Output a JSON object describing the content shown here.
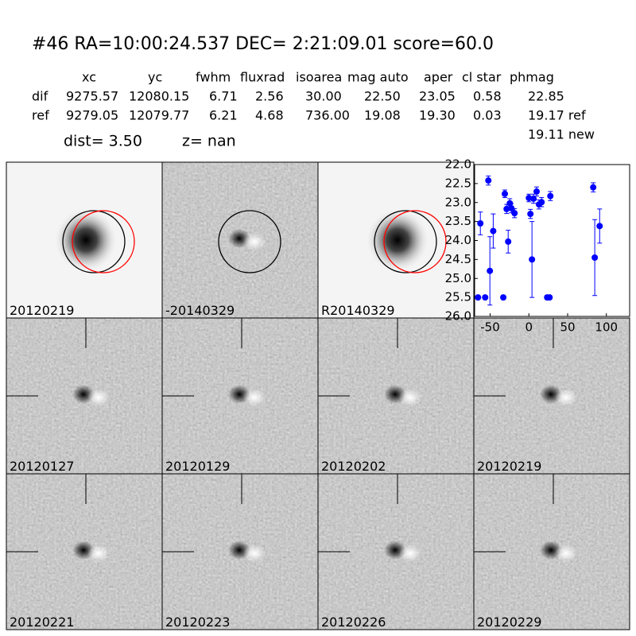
{
  "header": {
    "title": "#46   RA=10:00:24.537 DEC= 2:21:09.01      score=60.0",
    "columns": [
      "xc",
      "yc",
      "fwhm",
      "fluxrad",
      "isoarea",
      "mag auto",
      "aper",
      "cl star",
      "phmag"
    ],
    "rows": [
      {
        "label": "dif",
        "cells": [
          "9275.57",
          "12080.15",
          "6.71",
          "2.56",
          "30.00",
          "22.50",
          "23.05",
          "0.58",
          "22.85"
        ]
      },
      {
        "label": "ref",
        "cells": [
          "9279.05",
          "12079.77",
          "6.21",
          "4.68",
          "736.00",
          "19.08",
          "19.30",
          "0.03",
          "19.17 ref"
        ]
      }
    ],
    "extra": "19.11 new",
    "dist": "dist=  3.50",
    "z": "z=   nan"
  },
  "top_panels": [
    {
      "label": "20120219",
      "color": "#000000"
    },
    {
      "label": "-20140329",
      "color": "#000000"
    },
    {
      "label": "R20140329",
      "color": "#000000"
    }
  ],
  "grid_panels": [
    {
      "label": "20120127",
      "color": "#000000"
    },
    {
      "label": "20120129",
      "color": "#000000"
    },
    {
      "label": "20120202",
      "color": "#000000"
    },
    {
      "label": "20120219",
      "color": "#ff0000"
    },
    {
      "label": "20120221",
      "color": "#000000"
    },
    {
      "label": "20120223",
      "color": "#000000"
    },
    {
      "label": "20120226",
      "color": "#000000"
    },
    {
      "label": "20120229",
      "color": "#000000"
    }
  ],
  "chart_data": {
    "type": "scatter",
    "color": "#0000ff",
    "x": [
      -62.6,
      -65.6,
      -56.4,
      -52.3,
      -50.3,
      -46,
      -33,
      -31,
      -28.7,
      -26.7,
      -24.6,
      -22.6,
      -18.5,
      0,
      2,
      4,
      6,
      10,
      13,
      16.4,
      23.6,
      26.7,
      27.7,
      83,
      85,
      91.3
    ],
    "values": [
      23.55,
      25.5,
      25.5,
      22.42,
      24.8,
      23.75,
      25.5,
      22.77,
      23.17,
      24.03,
      23.02,
      23.15,
      23.28,
      22.88,
      23.3,
      24.5,
      22.9,
      22.71,
      23.05,
      22.99,
      25.5,
      25.5,
      22.83,
      22.6,
      24.45,
      23.62
    ],
    "errors": [
      0.3,
      0.02,
      0.02,
      0.12,
      0.9,
      0.45,
      0.05,
      0.1,
      0.12,
      0.3,
      0.12,
      0.12,
      0.12,
      0.1,
      0.12,
      1.0,
      0.12,
      0.12,
      0.12,
      0.12,
      0.05,
      0.05,
      0.12,
      0.12,
      1.0,
      0.45
    ],
    "xlim": [
      -70,
      130
    ],
    "xticks": [
      -50,
      0,
      50,
      100
    ],
    "ylim": [
      22,
      26
    ],
    "y_inverted": true,
    "yticks": [
      {
        "value": 22,
        "label": "22.0"
      },
      {
        "value": 22.5,
        "label": "22.5"
      },
      {
        "value": 23,
        "label": "23.0"
      },
      {
        "value": 23.5,
        "label": "23.5"
      },
      {
        "value": 24,
        "label": "24.0"
      },
      {
        "value": 24.5,
        "label": "24.5"
      },
      {
        "value": 25,
        "label": "25.0"
      },
      {
        "value": 25.5,
        "label": "25.5"
      },
      {
        "value": 26,
        "label": "26.0"
      }
    ]
  }
}
